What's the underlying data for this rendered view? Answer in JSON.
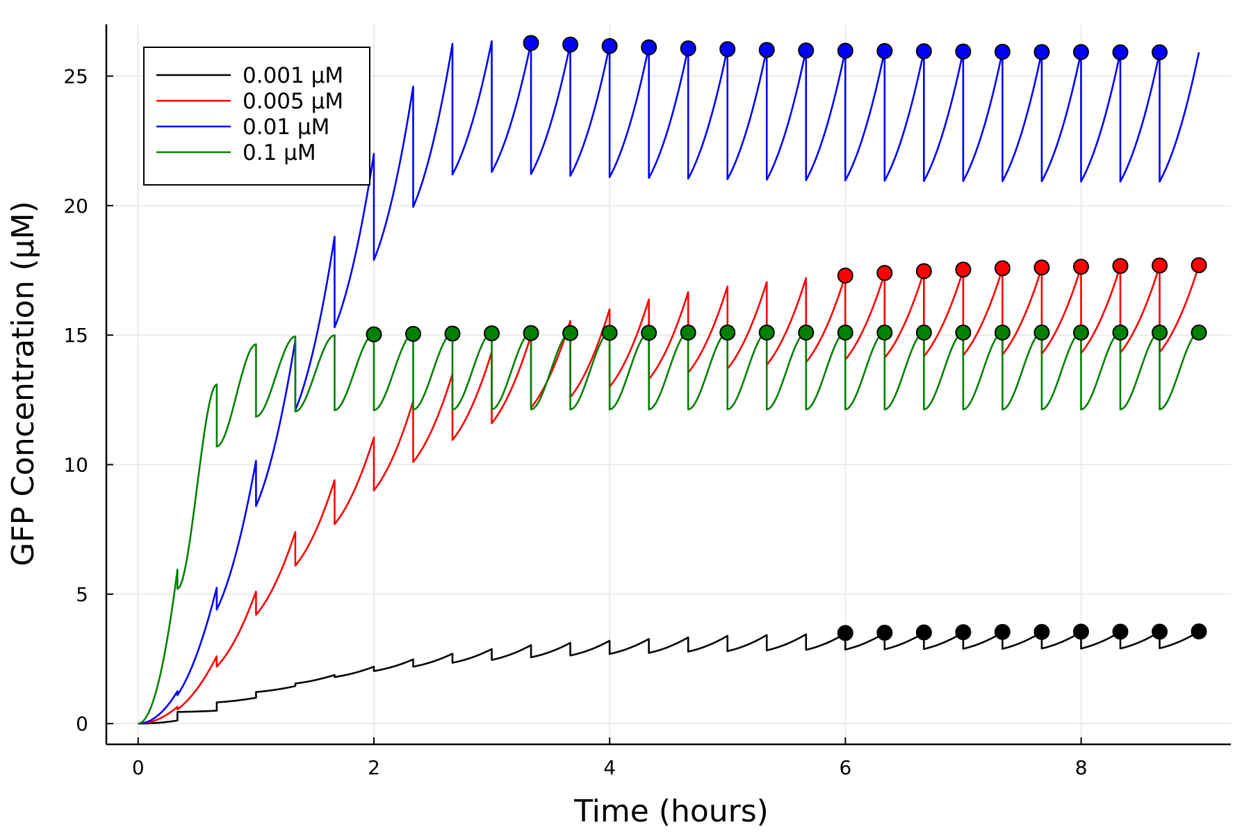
{
  "chart_data": {
    "type": "line",
    "title": "",
    "xlabel": "Time (hours)",
    "ylabel": "GFP Concentration (μM)",
    "xlim": [
      -0.27,
      9.27
    ],
    "ylim": [
      -0.8,
      27.0
    ],
    "xticks": [
      0,
      2,
      4,
      6,
      8
    ],
    "yticks": [
      0,
      5,
      10,
      15,
      20,
      25
    ],
    "grid": true,
    "legend_position": "top-left",
    "dose_interval_hours": 0.3333,
    "series": [
      {
        "name": "0.001 μM",
        "color": "#000000",
        "peaks": [
          0.12,
          0.5,
          1.0,
          1.45,
          1.88,
          2.2,
          2.48,
          2.7,
          2.88,
          3.03,
          3.12,
          3.2,
          3.27,
          3.33,
          3.39,
          3.42,
          3.45,
          3.48,
          3.5,
          3.51,
          3.52,
          3.53,
          3.54,
          3.54,
          3.55,
          3.55,
          3.56
        ],
        "troughs": [
          0.0,
          0.45,
          0.82,
          1.22,
          1.55,
          1.8,
          2.03,
          2.2,
          2.35,
          2.46,
          2.56,
          2.63,
          2.69,
          2.73,
          2.78,
          2.8,
          2.83,
          2.85,
          2.86,
          2.87,
          2.88,
          2.89,
          2.89,
          2.9,
          2.9,
          2.9,
          2.91
        ],
        "markers_from_hour": 6,
        "marker_values": [
          3.5,
          3.51,
          3.52,
          3.53,
          3.54,
          3.54,
          3.55,
          3.55,
          3.55,
          3.56
        ]
      },
      {
        "name": "0.005 μM",
        "color": "#ff0000",
        "peaks": [
          0.65,
          2.6,
          5.1,
          7.4,
          9.4,
          11.05,
          12.45,
          13.5,
          14.35,
          15.0,
          15.55,
          16.0,
          16.38,
          16.66,
          16.88,
          17.05,
          17.2,
          17.3,
          17.38,
          17.45,
          17.51,
          17.56,
          17.6,
          17.63,
          17.66,
          17.68,
          17.7
        ],
        "troughs": [
          0.0,
          0.55,
          2.2,
          4.2,
          6.1,
          7.7,
          9.0,
          10.1,
          10.95,
          11.6,
          12.2,
          12.6,
          13.0,
          13.3,
          13.55,
          13.7,
          13.85,
          13.95,
          14.05,
          14.12,
          14.18,
          14.22,
          14.25,
          14.28,
          14.3,
          14.32,
          14.34
        ],
        "markers_from_hour": 6,
        "marker_values": [
          17.3,
          17.4,
          17.47,
          17.53,
          17.58,
          17.61,
          17.64,
          17.67,
          17.69,
          17.7
        ]
      },
      {
        "name": "0.01 μM",
        "color": "#0000ff",
        "peaks": [
          1.25,
          5.25,
          10.15,
          14.8,
          18.8,
          22.0,
          24.6,
          26.25,
          26.35,
          26.3,
          26.25,
          26.2,
          26.15,
          26.1,
          26.08,
          26.05,
          26.03,
          26.0,
          25.98,
          25.97,
          25.96,
          25.95,
          25.94,
          25.93,
          25.93,
          25.92,
          25.92
        ],
        "troughs": [
          0.0,
          1.1,
          4.4,
          8.4,
          12.1,
          15.3,
          17.9,
          19.95,
          21.2,
          21.3,
          21.22,
          21.15,
          21.1,
          21.07,
          21.04,
          21.02,
          21.0,
          20.98,
          20.97,
          20.96,
          20.95,
          20.95,
          20.94,
          20.94,
          20.93,
          20.93,
          20.93
        ],
        "markers_from_hour": 3.3333,
        "marker_values": [
          26.28,
          26.22,
          26.16,
          26.11,
          26.07,
          26.04,
          26.01,
          25.99,
          25.98,
          25.97,
          25.96,
          25.95,
          25.94,
          25.93,
          25.93,
          25.92,
          25.92
        ]
      },
      {
        "name": "0.1 μM",
        "color": "#008000",
        "peaks": [
          5.95,
          13.1,
          14.65,
          14.95,
          15.0,
          15.05,
          15.05,
          15.08,
          15.08,
          15.1,
          15.1,
          15.1,
          15.1,
          15.1,
          15.1,
          15.1,
          15.1,
          15.1,
          15.1,
          15.1,
          15.1,
          15.1,
          15.1,
          15.1,
          15.1,
          15.1,
          15.1
        ],
        "troughs": [
          0.0,
          5.2,
          10.7,
          11.85,
          12.05,
          12.1,
          12.1,
          12.12,
          12.12,
          12.13,
          12.13,
          12.13,
          12.13,
          12.13,
          12.13,
          12.13,
          12.13,
          12.13,
          12.13,
          12.13,
          12.13,
          12.13,
          12.13,
          12.13,
          12.13,
          12.13,
          12.13
        ],
        "markers_from_hour": 2,
        "marker_values": [
          15.03,
          15.05,
          15.06,
          15.07,
          15.08,
          15.08,
          15.09,
          15.09,
          15.1,
          15.1,
          15.1,
          15.1,
          15.1,
          15.1,
          15.1,
          15.1,
          15.1,
          15.1,
          15.1,
          15.1,
          15.1,
          15.1
        ]
      }
    ]
  }
}
